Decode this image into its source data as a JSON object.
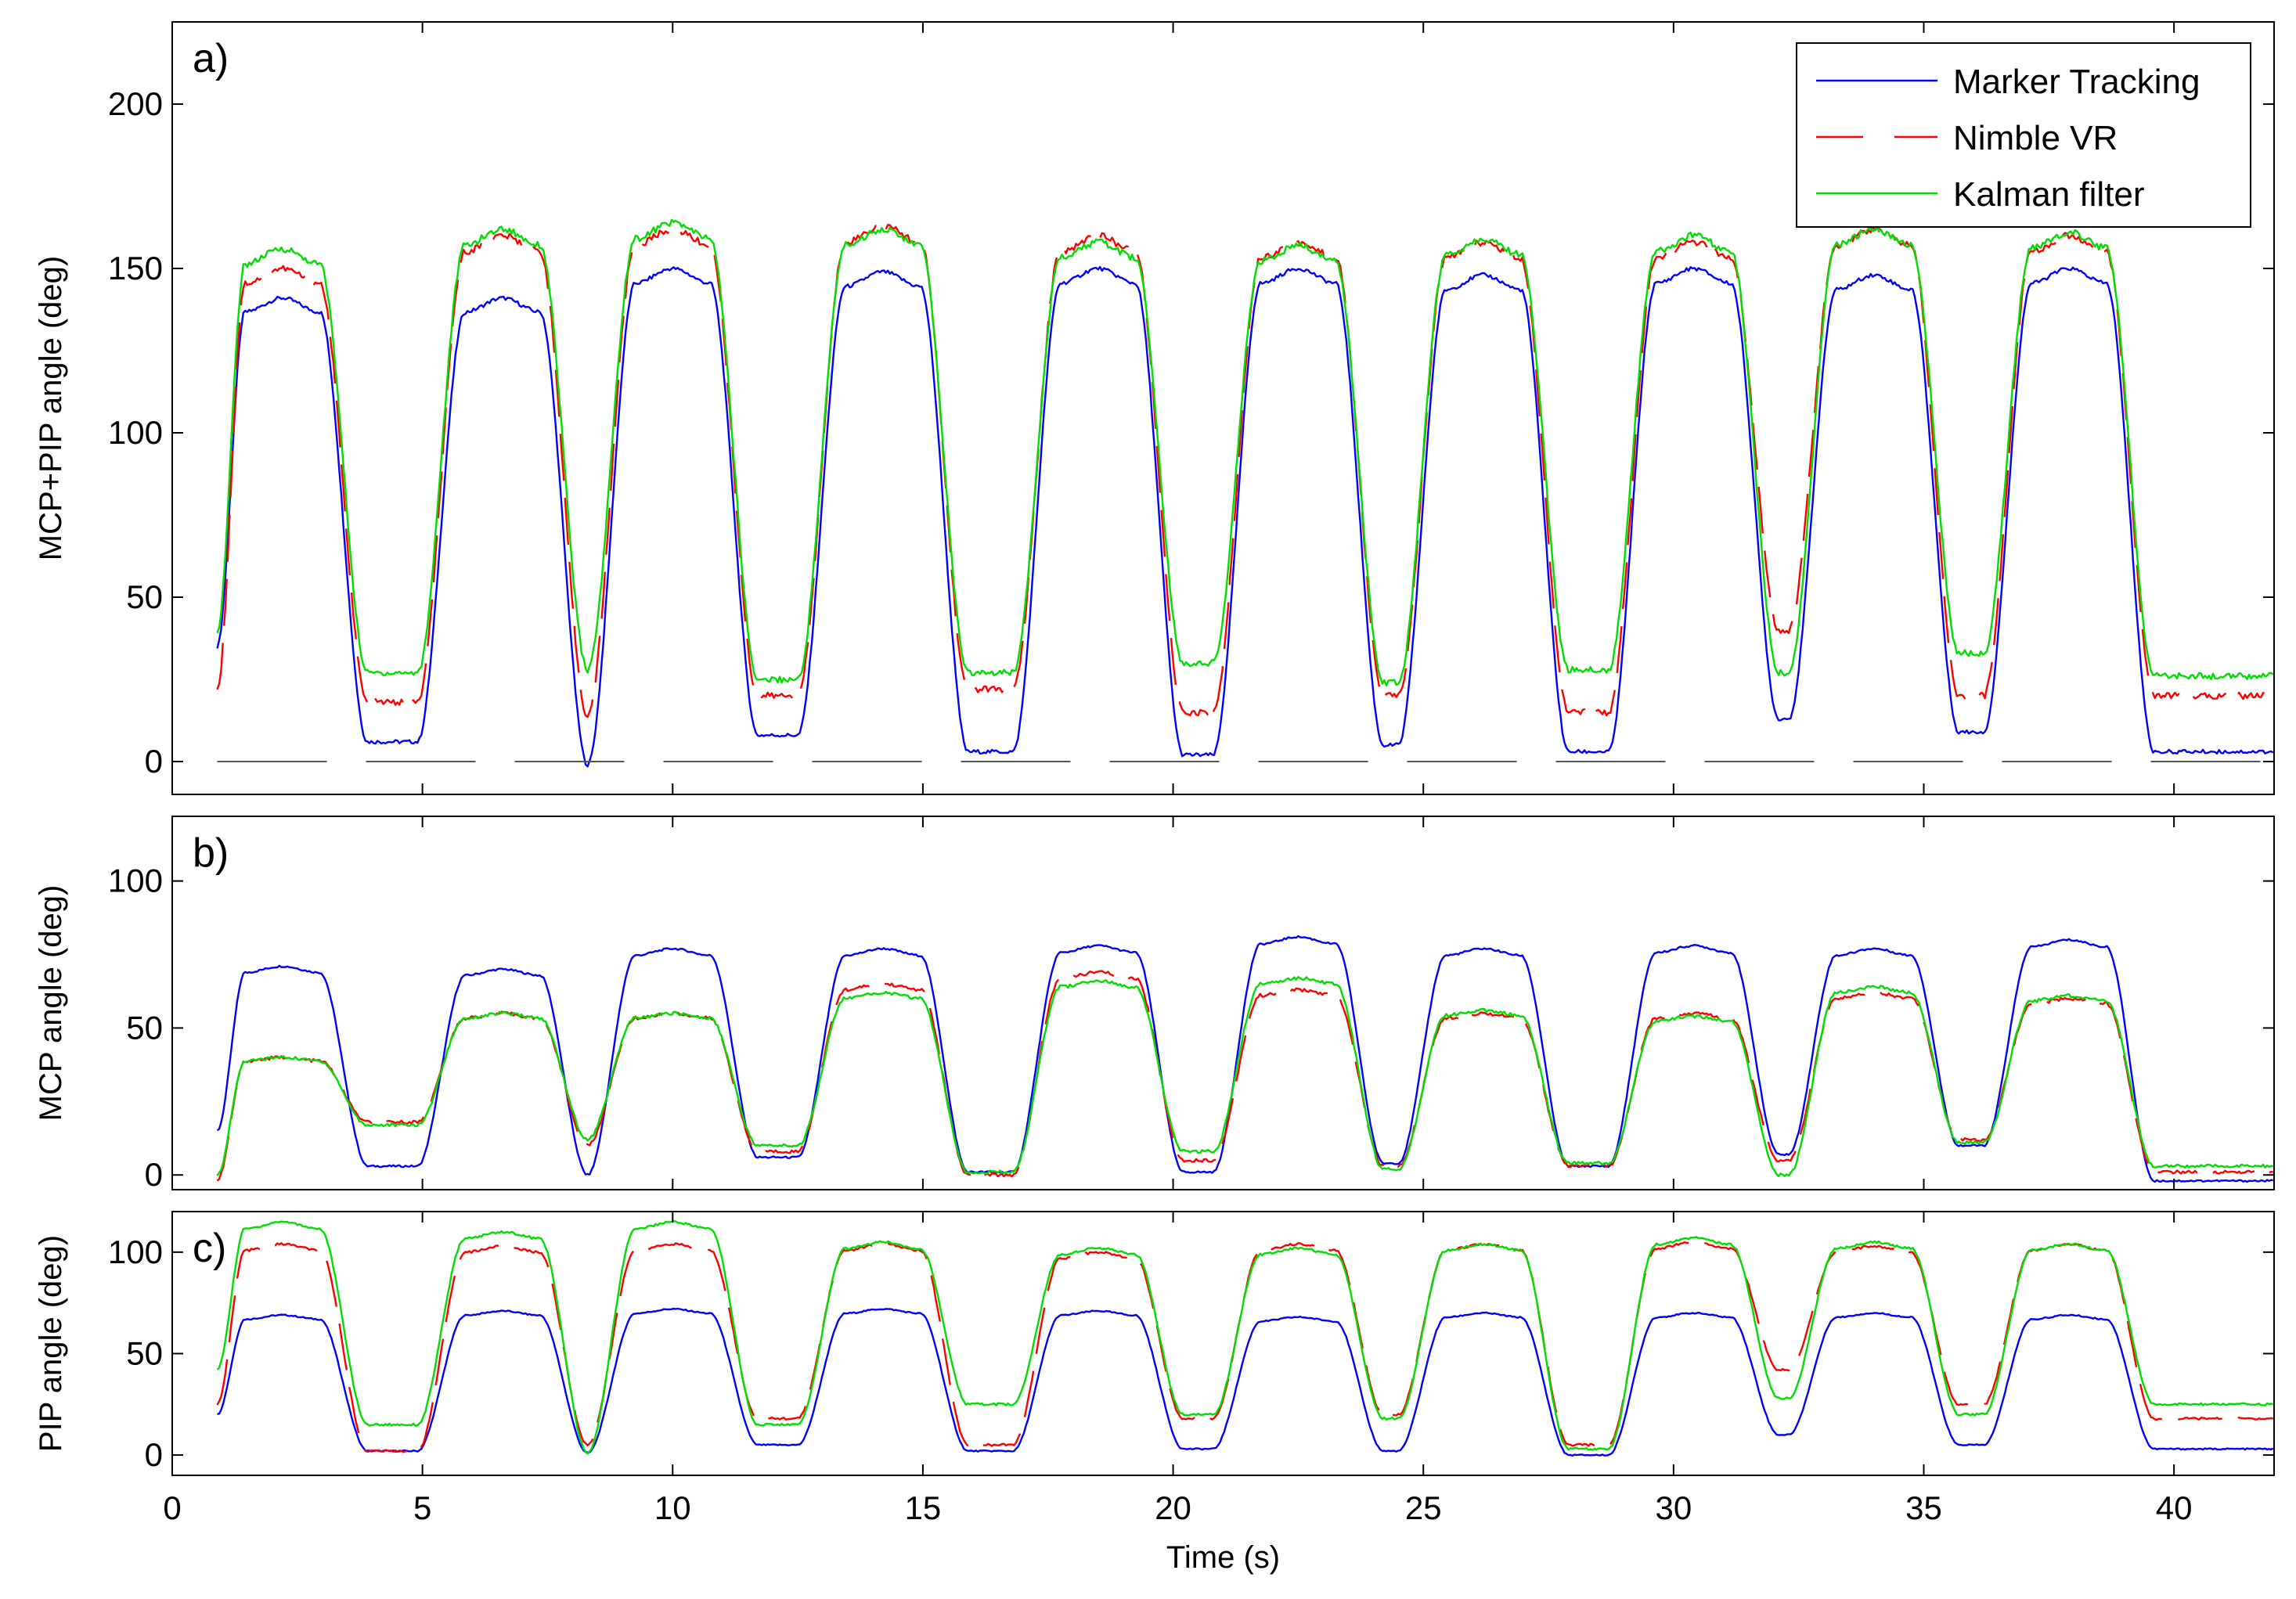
{
  "chart_data": {
    "type": "line",
    "xlabel": "Time (s)",
    "xlim": [
      0,
      42
    ],
    "xticks": [
      0,
      5,
      10,
      15,
      20,
      25,
      30,
      35,
      40
    ],
    "x_tick_labels": [
      "0",
      "5",
      "10",
      "15",
      "20",
      "25",
      "30",
      "35",
      "40"
    ],
    "legend": {
      "position": "top-right of panel a",
      "entries": [
        {
          "label": "Marker Tracking",
          "color": "#0000ff",
          "style": "solid"
        },
        {
          "label": "Nimble VR",
          "color": "#ff0000",
          "style": "dashed"
        },
        {
          "label": "Kalman filter",
          "color": "#00dd00",
          "style": "solid"
        }
      ]
    },
    "cycle_centers": [
      2.2,
      6.6,
      10.0,
      14.2,
      18.5,
      22.5,
      26.2,
      30.4,
      34.0,
      37.9
    ],
    "panels": [
      {
        "tag": "a)",
        "ylabel": "MCP+PIP angle (deg)",
        "ylim": [
          -10,
          225
        ],
        "yticks": [
          0,
          50,
          100,
          150,
          200
        ],
        "y_tick_labels": [
          "0",
          "50",
          "100",
          "150",
          "200"
        ],
        "series": [
          {
            "name": "Marker Tracking",
            "color": "#0000ff",
            "dashed": false,
            "peaks": [
              141,
              141,
              150,
              149,
              150,
              150,
              148,
              150,
              148,
              150
            ],
            "troughs": [
              35,
              6,
              -1,
              8,
              3,
              2,
              5,
              3,
              13,
              9,
              3
            ],
            "start": 0.9,
            "end": 42
          },
          {
            "name": "Nimble VR",
            "color": "#ff0000",
            "dashed": true,
            "peaks": [
              150,
              160,
              162,
              163,
              160,
              158,
              158,
              158,
              162,
              160
            ],
            "troughs": [
              22,
              18,
              14,
              20,
              22,
              15,
              20,
              15,
              40,
              20,
              20
            ],
            "start": 0.9,
            "end": 42
          },
          {
            "name": "Kalman filter",
            "color": "#00dd00",
            "dashed": false,
            "peaks": [
              156,
              162,
              164,
              162,
              158,
              157,
              159,
              160,
              162,
              161
            ],
            "troughs": [
              40,
              27,
              28,
              25,
              27,
              30,
              24,
              28,
              27,
              33,
              26
            ],
            "start": 0.9,
            "end": 42
          },
          {
            "name": "",
            "color": "#555555",
            "dashed": true,
            "flat": 0,
            "start": 0.9,
            "end": 42
          }
        ]
      },
      {
        "tag": "b)",
        "ylabel": "MCP angle (deg)",
        "ylim": [
          -5,
          122
        ],
        "yticks": [
          0,
          50,
          100
        ],
        "y_tick_labels": [
          "0",
          "50",
          "100"
        ],
        "series": [
          {
            "name": "Marker Tracking",
            "color": "#0000ff",
            "dashed": false,
            "peaks": [
              71,
              70,
              77,
              77,
              78,
              81,
              77,
              78,
              77,
              80
            ],
            "troughs": [
              15,
              3,
              0,
              6,
              1,
              1,
              4,
              3,
              7,
              10,
              -2
            ],
            "start": 0.9,
            "end": 42
          },
          {
            "name": "Nimble VR",
            "color": "#ff0000",
            "dashed": true,
            "peaks": [
              40,
              55,
              55,
              65,
              69,
              63,
              55,
              55,
              62,
              60
            ],
            "troughs": [
              -2,
              18,
              10,
              8,
              0,
              5,
              3,
              3,
              5,
              12,
              1
            ],
            "start": 0.9,
            "end": 42
          },
          {
            "name": "Kalman filter",
            "color": "#00dd00",
            "dashed": false,
            "peaks": [
              40,
              55,
              55,
              62,
              66,
              67,
              56,
              54,
              64,
              61
            ],
            "troughs": [
              0,
              17,
              12,
              10,
              1,
              8,
              2,
              4,
              0,
              11,
              3
            ],
            "start": 0.9,
            "end": 42
          }
        ]
      },
      {
        "tag": "c)",
        "ylabel": "PIP angle (deg)",
        "ylim": [
          -10,
          120
        ],
        "yticks": [
          0,
          50,
          100
        ],
        "y_tick_labels": [
          "0",
          "50",
          "100"
        ],
        "series": [
          {
            "name": "Marker Tracking",
            "color": "#0000ff",
            "dashed": false,
            "peaks": [
              69,
              71,
              72,
              72,
              71,
              68,
              70,
              70,
              70,
              69
            ],
            "troughs": [
              20,
              2,
              1,
              5,
              2,
              3,
              2,
              0,
              10,
              5,
              3
            ],
            "start": 0.9,
            "end": 42
          },
          {
            "name": "Nimble VR",
            "color": "#ff0000",
            "dashed": true,
            "peaks": [
              104,
              103,
              104,
              104,
              100,
              104,
              104,
              105,
              103,
              104
            ],
            "troughs": [
              25,
              2,
              5,
              18,
              5,
              18,
              20,
              5,
              42,
              25,
              18
            ],
            "start": 0.9,
            "end": 42
          },
          {
            "name": "Kalman filter",
            "color": "#00dd00",
            "dashed": false,
            "peaks": [
              115,
              110,
              115,
              105,
              102,
              102,
              104,
              107,
              105,
              104
            ],
            "troughs": [
              42,
              15,
              1,
              15,
              25,
              20,
              18,
              3,
              28,
              20,
              25
            ],
            "start": 0.9,
            "end": 42
          }
        ]
      }
    ]
  }
}
